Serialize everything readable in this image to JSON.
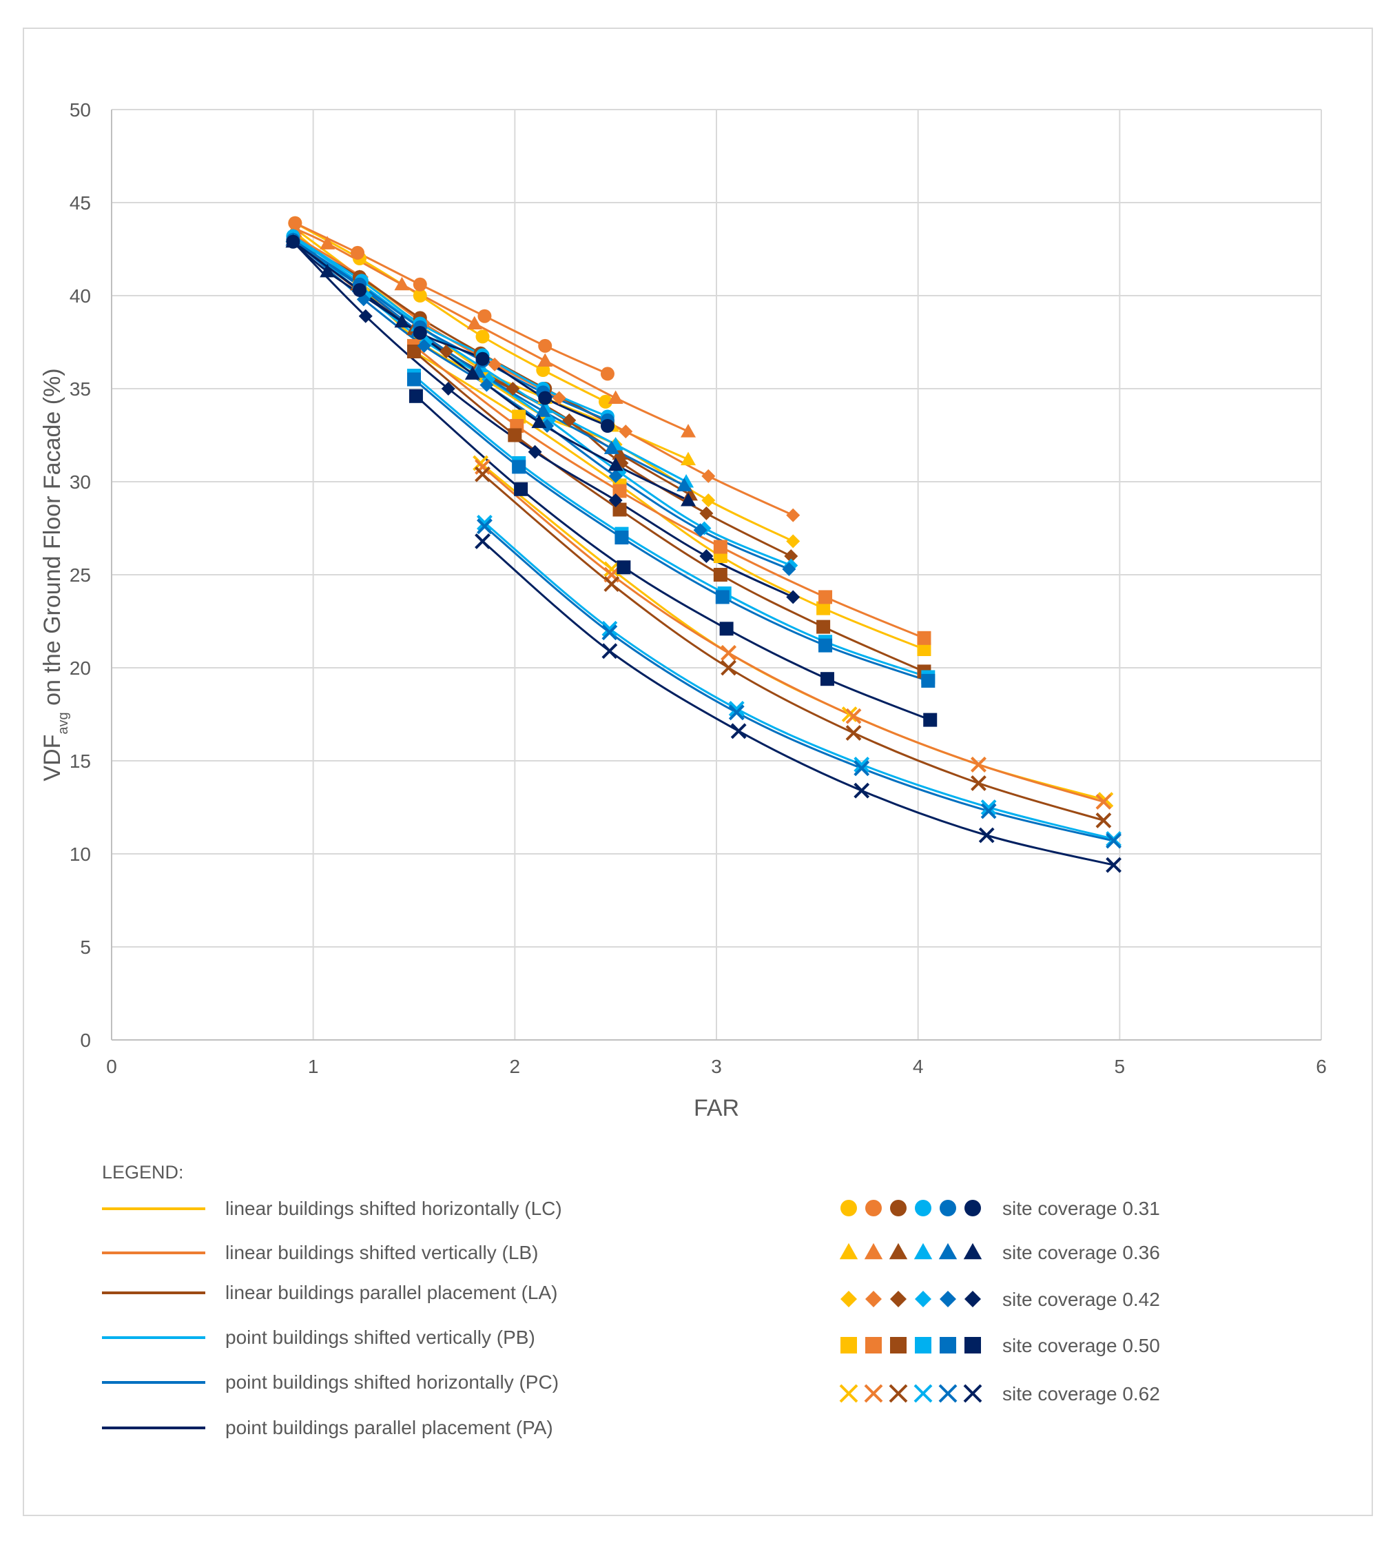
{
  "chart_data": {
    "type": "scatter",
    "xlabel": "FAR",
    "ylabel": {
      "main": "VDF",
      "subscript": "avg",
      "rest": " on the Ground Floor Facade (%)"
    },
    "xlim": [
      0,
      6
    ],
    "ylim": [
      0,
      50
    ],
    "xticks": [
      "0",
      "1",
      "2",
      "3",
      "4",
      "5",
      "6"
    ],
    "yticks": [
      "0",
      "5",
      "10",
      "15",
      "20",
      "25",
      "30",
      "35",
      "40",
      "45",
      "50"
    ],
    "grid": true,
    "marker_types": [
      "circle",
      "triangle",
      "diamond",
      "square",
      "x"
    ],
    "legend": {
      "title": "LEGEND:",
      "series_labels": [
        "linear buildings shifted horizontally (LC)",
        "linear buildings shifted vertically (LB)",
        "linear buildings parallel placement (LA)",
        "point buildings shifted vertically (PB)",
        "point buildings shifted horizontally (PC)",
        "point buildings parallel placement (PA)"
      ],
      "marker_labels": [
        "site coverage 0.31",
        "site coverage 0.36",
        "site coverage 0.42",
        "site coverage 0.50",
        "site coverage 0.62"
      ]
    },
    "series": [
      {
        "color": "#ffc000",
        "groups": [
          {
            "x": [
              0.91,
              1.23,
              1.53,
              1.84,
              2.14,
              2.45
            ],
            "y": [
              43.9,
              42.0,
              40.0,
              37.8,
              36.0,
              34.3
            ]
          },
          {
            "x": [
              0.91,
              1.23,
              1.52,
              1.84,
              2.15,
              2.48,
              2.86
            ],
            "y": [
              43.6,
              41.0,
              38.5,
              36.0,
              34.5,
              33.0,
              31.2
            ]
          },
          {
            "x": [
              0.91,
              1.25,
              1.53,
              1.85,
              2.15,
              2.5,
              2.96,
              3.38
            ],
            "y": [
              43.4,
              40.3,
              37.5,
              35.5,
              33.5,
              32.0,
              29.0,
              26.8
            ]
          },
          {
            "x": [
              1.5,
              2.02,
              2.52,
              3.02,
              3.53,
              4.03
            ],
            "y": [
              37.0,
              33.5,
              29.8,
              26.0,
              23.2,
              21.0
            ]
          },
          {
            "x": [
              1.83,
              2.48,
              3.06,
              3.66,
              4.3,
              4.93
            ],
            "y": [
              31.0,
              25.3,
              20.8,
              17.5,
              14.8,
              12.9
            ]
          }
        ]
      },
      {
        "color": "#ed7d31",
        "groups": [
          {
            "x": [
              0.91,
              1.22,
              1.53,
              1.85,
              2.15,
              2.46
            ],
            "y": [
              43.9,
              42.3,
              40.6,
              38.9,
              37.3,
              35.8
            ]
          },
          {
            "x": [
              0.91,
              1.07,
              1.44,
              1.8,
              2.15,
              2.5,
              2.86
            ],
            "y": [
              43.6,
              42.8,
              40.6,
              38.5,
              36.5,
              34.5,
              32.7
            ]
          },
          {
            "x": [
              0.91,
              1.24,
              1.55,
              1.9,
              2.22,
              2.55,
              2.96,
              3.38
            ],
            "y": [
              43.2,
              41.0,
              38.5,
              36.3,
              34.5,
              32.7,
              30.3,
              28.2
            ]
          },
          {
            "x": [
              1.5,
              2.01,
              2.52,
              3.02,
              3.54,
              4.03
            ],
            "y": [
              37.3,
              33.0,
              29.5,
              26.5,
              23.8,
              21.6
            ]
          },
          {
            "x": [
              1.84,
              2.48,
              3.06,
              3.68,
              4.3,
              4.92
            ],
            "y": [
              30.8,
              25.0,
              20.8,
              17.4,
              14.8,
              12.8
            ]
          }
        ]
      },
      {
        "color": "#9c4a14",
        "groups": [
          {
            "x": [
              0.9,
              1.23,
              1.53,
              1.83,
              2.15,
              2.46
            ],
            "y": [
              43.0,
              41.0,
              38.8,
              36.9,
              35.0,
              33.2
            ]
          },
          {
            "x": [
              0.9,
              1.22,
              1.5,
              1.81,
              2.15,
              2.52,
              2.87
            ],
            "y": [
              43.0,
              40.6,
              38.2,
              36.0,
              34.0,
              31.5,
              29.3
            ]
          },
          {
            "x": [
              0.9,
              1.26,
              1.66,
              1.99,
              2.27,
              2.53,
              2.95,
              3.37
            ],
            "y": [
              43.0,
              40.0,
              37.0,
              35.0,
              33.3,
              31.0,
              28.3,
              26.0
            ]
          },
          {
            "x": [
              1.5,
              2.0,
              2.52,
              3.02,
              3.53,
              4.03
            ],
            "y": [
              37.0,
              32.5,
              28.5,
              25.0,
              22.2,
              19.8
            ]
          },
          {
            "x": [
              1.84,
              2.48,
              3.06,
              3.68,
              4.3,
              4.92
            ],
            "y": [
              30.4,
              24.5,
              20.0,
              16.5,
              13.8,
              11.8
            ]
          }
        ]
      },
      {
        "color": "#00b0f0",
        "groups": [
          {
            "x": [
              0.9,
              1.24,
              1.53,
              1.84,
              2.14,
              2.46
            ],
            "y": [
              43.2,
              40.8,
              38.5,
              36.8,
              35.0,
              33.5
            ]
          },
          {
            "x": [
              0.9,
              1.23,
              1.52,
              1.83,
              2.15,
              2.5,
              2.85
            ],
            "y": [
              43.2,
              40.7,
              38.4,
              36.2,
              34.0,
              32.0,
              30.0
            ]
          },
          {
            "x": [
              0.9,
              1.26,
              1.56,
              1.87,
              2.17,
              2.52,
              2.94,
              3.37
            ],
            "y": [
              43.2,
              40.0,
              37.5,
              35.5,
              33.3,
              30.5,
              27.5,
              25.5
            ]
          },
          {
            "x": [
              1.5,
              2.02,
              2.53,
              3.04,
              3.54,
              4.05
            ],
            "y": [
              35.7,
              31.0,
              27.2,
              24.0,
              21.4,
              19.5
            ]
          },
          {
            "x": [
              1.85,
              2.47,
              3.1,
              3.72,
              4.35,
              4.97
            ],
            "y": [
              27.8,
              22.1,
              17.8,
              14.8,
              12.5,
              10.8
            ]
          }
        ]
      },
      {
        "color": "#0070c0",
        "groups": [
          {
            "x": [
              0.9,
              1.23,
              1.53,
              1.84,
              2.14,
              2.46
            ],
            "y": [
              43.0,
              40.6,
              38.3,
              36.5,
              34.8,
              33.3
            ]
          },
          {
            "x": [
              0.9,
              1.23,
              1.52,
              1.82,
              2.14,
              2.48,
              2.84
            ],
            "y": [
              43.0,
              40.5,
              38.1,
              35.9,
              33.8,
              31.8,
              29.8
            ]
          },
          {
            "x": [
              0.9,
              1.25,
              1.55,
              1.86,
              2.16,
              2.5,
              2.92,
              3.36
            ],
            "y": [
              43.0,
              39.8,
              37.3,
              35.2,
              33.0,
              30.3,
              27.4,
              25.3
            ]
          },
          {
            "x": [
              1.5,
              2.02,
              2.53,
              3.03,
              3.54,
              4.05
            ],
            "y": [
              35.5,
              30.8,
              27.0,
              23.8,
              21.2,
              19.3
            ]
          },
          {
            "x": [
              1.85,
              2.47,
              3.1,
              3.72,
              4.35,
              4.97
            ],
            "y": [
              27.6,
              21.9,
              17.6,
              14.6,
              12.3,
              10.7
            ]
          }
        ]
      },
      {
        "color": "#002060",
        "groups": [
          {
            "x": [
              0.9,
              1.23,
              1.53,
              1.84,
              2.15,
              2.46
            ],
            "y": [
              42.9,
              40.3,
              38.0,
              36.6,
              34.5,
              33.0
            ]
          },
          {
            "x": [
              0.9,
              1.07,
              1.44,
              1.79,
              2.12,
              2.5,
              2.86
            ],
            "y": [
              42.9,
              41.3,
              38.6,
              35.8,
              33.2,
              30.9,
              29.0
            ]
          },
          {
            "x": [
              0.9,
              1.26,
              1.67,
              2.1,
              2.5,
              2.95,
              3.38
            ],
            "y": [
              42.9,
              38.9,
              35.0,
              31.6,
              29.0,
              26.0,
              23.8
            ]
          },
          {
            "x": [
              1.51,
              2.03,
              2.54,
              3.05,
              3.55,
              4.06
            ],
            "y": [
              34.6,
              29.6,
              25.4,
              22.1,
              19.4,
              17.2
            ]
          },
          {
            "x": [
              1.84,
              2.47,
              3.11,
              3.72,
              4.34,
              4.97
            ],
            "y": [
              26.8,
              20.9,
              16.6,
              13.4,
              11.0,
              9.4
            ]
          }
        ]
      }
    ]
  }
}
